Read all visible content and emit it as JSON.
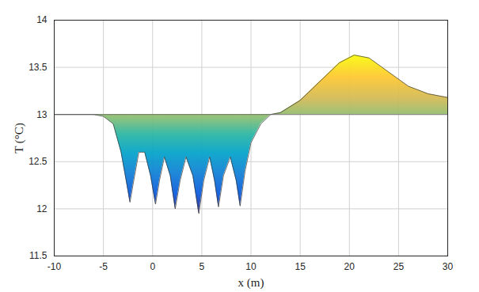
{
  "chart_data": {
    "type": "area",
    "x_label": "x (m)",
    "y_label": "T (°C)",
    "x": [
      -10,
      -6,
      -5,
      -4,
      -3.2,
      -2.6,
      -2.3,
      -2.0,
      -1.4,
      -0.8,
      -0.2,
      0.3,
      0.7,
      1.2,
      1.8,
      2.3,
      2.8,
      3.4,
      4.1,
      4.7,
      5.2,
      5.8,
      6.3,
      6.7,
      7.2,
      7.9,
      8.5,
      8.9,
      9.4,
      10,
      11,
      12,
      13,
      15,
      17,
      19,
      20.5,
      22,
      24,
      26,
      28,
      30
    ],
    "values": [
      13,
      13,
      12.98,
      12.9,
      12.6,
      12.25,
      12.07,
      12.25,
      12.6,
      12.6,
      12.35,
      12.05,
      12.3,
      12.55,
      12.35,
      12.0,
      12.3,
      12.55,
      12.35,
      11.95,
      12.3,
      12.55,
      12.3,
      12.02,
      12.35,
      12.55,
      12.3,
      12.03,
      12.4,
      12.7,
      12.9,
      13,
      13.02,
      13.15,
      13.35,
      13.55,
      13.63,
      13.6,
      13.45,
      13.3,
      13.22,
      13.18
    ],
    "baseline": 13,
    "xlim": [
      -10,
      30
    ],
    "ylim": [
      11.5,
      14
    ],
    "xticks": [
      -10,
      -5,
      0,
      5,
      10,
      15,
      20,
      25,
      30
    ],
    "yticks": [
      11.5,
      12,
      12.5,
      13,
      13.5,
      14
    ],
    "grid": true
  }
}
